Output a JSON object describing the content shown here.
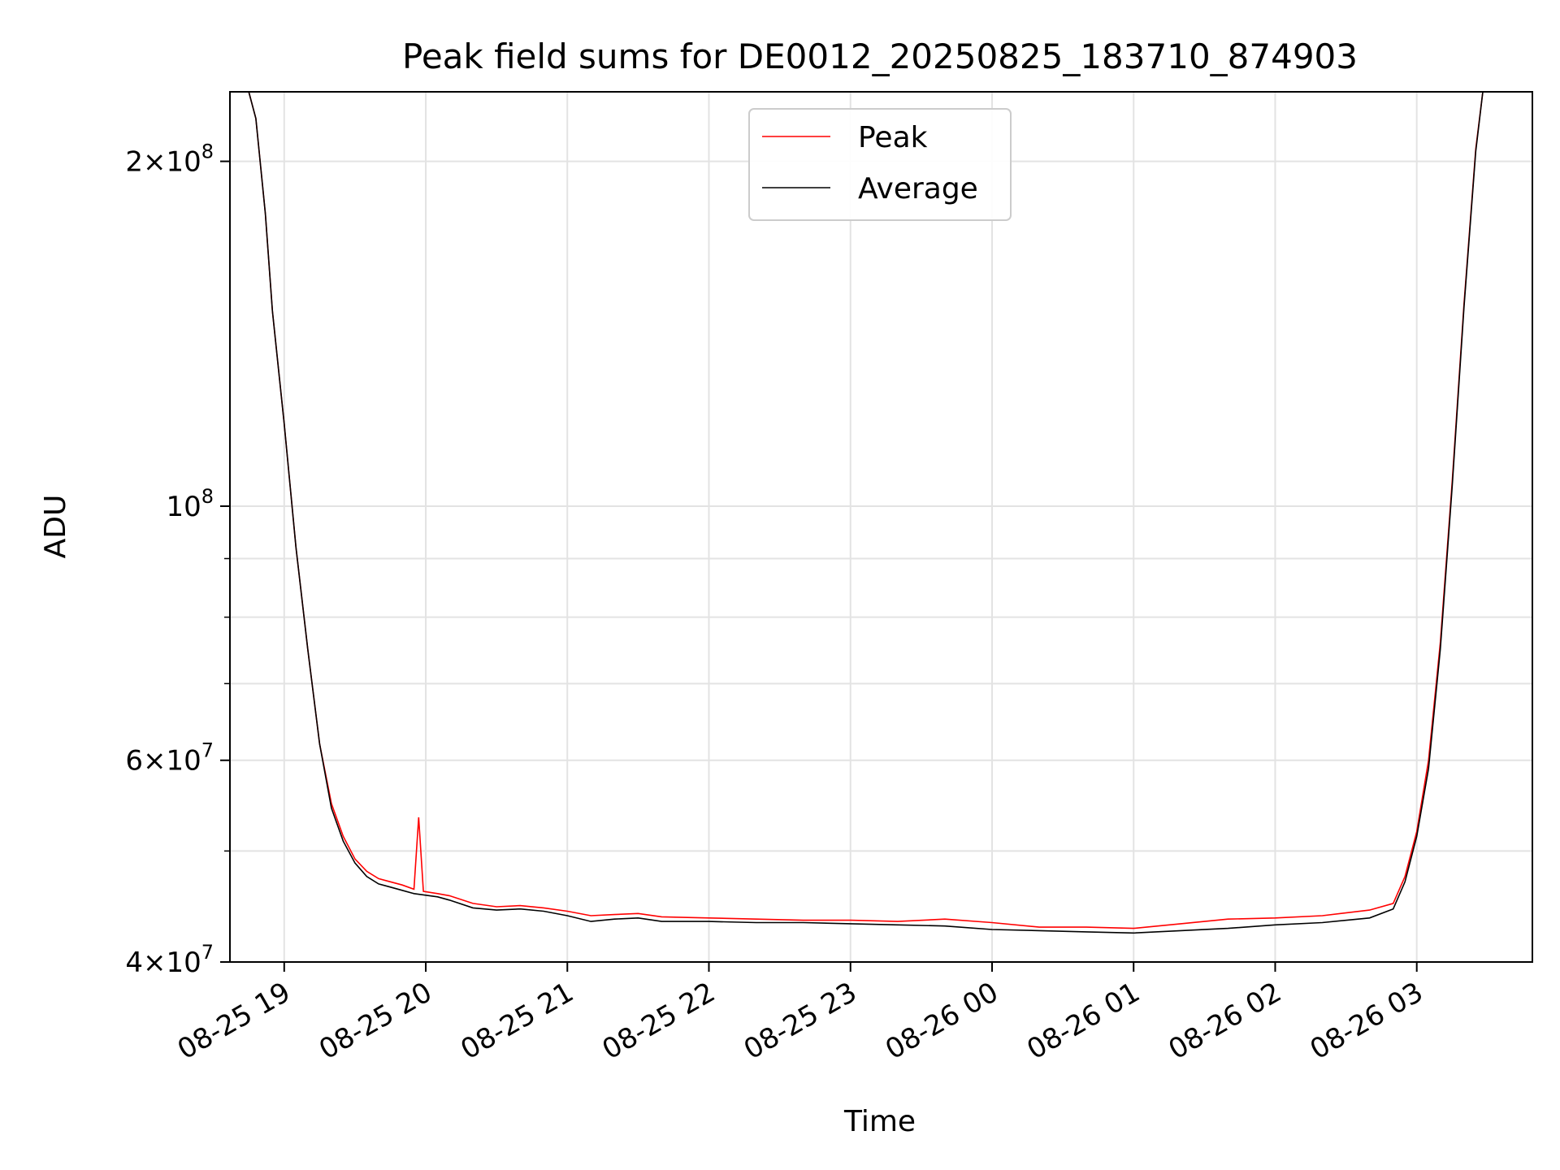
{
  "chart_data": {
    "type": "line",
    "title": "Peak field sums for DE0012_20250825_183710_874903",
    "xlabel": "Time",
    "ylabel": "ADU",
    "yscale": "log",
    "xlim": [
      "2025-08-25 18:37",
      "2025-08-26 03:49"
    ],
    "ylim": [
      40000000,
      230000000
    ],
    "grid": true,
    "legend_position": "upper center",
    "x_ticks": [
      {
        "t": "2025-08-25 19:00",
        "label": "08-25 19"
      },
      {
        "t": "2025-08-25 20:00",
        "label": "08-25 20"
      },
      {
        "t": "2025-08-25 21:00",
        "label": "08-25 21"
      },
      {
        "t": "2025-08-25 22:00",
        "label": "08-25 22"
      },
      {
        "t": "2025-08-25 23:00",
        "label": "08-25 23"
      },
      {
        "t": "2025-08-26 00:00",
        "label": "08-26 00"
      },
      {
        "t": "2025-08-26 01:00",
        "label": "08-26 01"
      },
      {
        "t": "2025-08-26 02:00",
        "label": "08-26 02"
      },
      {
        "t": "2025-08-26 03:00",
        "label": "08-26 03"
      }
    ],
    "y_ticks": [
      {
        "value": 40000000,
        "base": "4",
        "exp": "7"
      },
      {
        "value": 60000000,
        "base": "6",
        "exp": "7"
      },
      {
        "value": 100000000,
        "base": "",
        "exp": "8"
      },
      {
        "value": 200000000,
        "base": "2",
        "exp": "8"
      }
    ],
    "y_minor_ticks": [
      50000000,
      70000000,
      80000000,
      90000000
    ],
    "series": [
      {
        "name": "Peak",
        "color": "#ff0000",
        "points": [
          [
            "2025-08-25 18:45",
            230000000
          ],
          [
            "2025-08-25 18:48",
            218000000
          ],
          [
            "2025-08-25 18:52",
            180000000
          ],
          [
            "2025-08-25 18:55",
            148000000
          ],
          [
            "2025-08-25 19:00",
            118000000
          ],
          [
            "2025-08-25 19:05",
            92000000
          ],
          [
            "2025-08-25 19:10",
            75000000
          ],
          [
            "2025-08-25 19:15",
            62000000
          ],
          [
            "2025-08-25 19:20",
            55000000
          ],
          [
            "2025-08-25 19:25",
            51500000
          ],
          [
            "2025-08-25 19:30",
            49200000
          ],
          [
            "2025-08-25 19:35",
            48000000
          ],
          [
            "2025-08-25 19:40",
            47300000
          ],
          [
            "2025-08-25 19:45",
            47000000
          ],
          [
            "2025-08-25 19:50",
            46700000
          ],
          [
            "2025-08-25 19:55",
            46300000
          ],
          [
            "2025-08-25 19:57",
            53500000
          ],
          [
            "2025-08-25 19:59",
            46100000
          ],
          [
            "2025-08-25 20:05",
            45900000
          ],
          [
            "2025-08-25 20:10",
            45700000
          ],
          [
            "2025-08-25 20:20",
            45000000
          ],
          [
            "2025-08-25 20:30",
            44700000
          ],
          [
            "2025-08-25 20:40",
            44800000
          ],
          [
            "2025-08-25 20:50",
            44600000
          ],
          [
            "2025-08-25 21:00",
            44300000
          ],
          [
            "2025-08-25 21:10",
            43900000
          ],
          [
            "2025-08-25 21:20",
            44000000
          ],
          [
            "2025-08-25 21:30",
            44100000
          ],
          [
            "2025-08-25 21:40",
            43800000
          ],
          [
            "2025-08-25 22:00",
            43700000
          ],
          [
            "2025-08-25 22:20",
            43600000
          ],
          [
            "2025-08-25 22:40",
            43500000
          ],
          [
            "2025-08-25 23:00",
            43500000
          ],
          [
            "2025-08-25 23:20",
            43400000
          ],
          [
            "2025-08-25 23:40",
            43600000
          ],
          [
            "2025-08-26 00:00",
            43300000
          ],
          [
            "2025-08-26 00:20",
            42900000
          ],
          [
            "2025-08-26 00:40",
            42900000
          ],
          [
            "2025-08-26 01:00",
            42800000
          ],
          [
            "2025-08-26 01:20",
            43200000
          ],
          [
            "2025-08-26 01:40",
            43600000
          ],
          [
            "2025-08-26 02:00",
            43700000
          ],
          [
            "2025-08-26 02:20",
            43900000
          ],
          [
            "2025-08-26 02:40",
            44400000
          ],
          [
            "2025-08-26 02:50",
            45000000
          ],
          [
            "2025-08-26 02:55",
            47500000
          ],
          [
            "2025-08-26 03:00",
            52000000
          ],
          [
            "2025-08-26 03:05",
            60000000
          ],
          [
            "2025-08-26 03:10",
            76000000
          ],
          [
            "2025-08-26 03:15",
            105000000
          ],
          [
            "2025-08-26 03:20",
            150000000
          ],
          [
            "2025-08-26 03:25",
            205000000
          ],
          [
            "2025-08-26 03:28",
            230000000
          ]
        ]
      },
      {
        "name": "Average",
        "color": "#000000",
        "points": [
          [
            "2025-08-25 18:45",
            230000000
          ],
          [
            "2025-08-25 18:48",
            218000000
          ],
          [
            "2025-08-25 18:52",
            180000000
          ],
          [
            "2025-08-25 18:55",
            148000000
          ],
          [
            "2025-08-25 19:00",
            118000000
          ],
          [
            "2025-08-25 19:05",
            92000000
          ],
          [
            "2025-08-25 19:10",
            75000000
          ],
          [
            "2025-08-25 19:15",
            62000000
          ],
          [
            "2025-08-25 19:20",
            54500000
          ],
          [
            "2025-08-25 19:25",
            51000000
          ],
          [
            "2025-08-25 19:30",
            48800000
          ],
          [
            "2025-08-25 19:35",
            47500000
          ],
          [
            "2025-08-25 19:40",
            46800000
          ],
          [
            "2025-08-25 19:45",
            46500000
          ],
          [
            "2025-08-25 19:50",
            46200000
          ],
          [
            "2025-08-25 19:55",
            45900000
          ],
          [
            "2025-08-25 20:05",
            45600000
          ],
          [
            "2025-08-25 20:10",
            45300000
          ],
          [
            "2025-08-25 20:20",
            44600000
          ],
          [
            "2025-08-25 20:30",
            44400000
          ],
          [
            "2025-08-25 20:40",
            44500000
          ],
          [
            "2025-08-25 20:50",
            44300000
          ],
          [
            "2025-08-25 21:00",
            43900000
          ],
          [
            "2025-08-25 21:10",
            43400000
          ],
          [
            "2025-08-25 21:20",
            43600000
          ],
          [
            "2025-08-25 21:30",
            43700000
          ],
          [
            "2025-08-25 21:40",
            43400000
          ],
          [
            "2025-08-25 22:00",
            43400000
          ],
          [
            "2025-08-25 22:20",
            43300000
          ],
          [
            "2025-08-25 22:40",
            43300000
          ],
          [
            "2025-08-25 23:00",
            43200000
          ],
          [
            "2025-08-25 23:20",
            43100000
          ],
          [
            "2025-08-25 23:40",
            43000000
          ],
          [
            "2025-08-26 00:00",
            42700000
          ],
          [
            "2025-08-26 00:20",
            42600000
          ],
          [
            "2025-08-26 00:40",
            42500000
          ],
          [
            "2025-08-26 01:00",
            42400000
          ],
          [
            "2025-08-26 01:20",
            42600000
          ],
          [
            "2025-08-26 01:40",
            42800000
          ],
          [
            "2025-08-26 02:00",
            43100000
          ],
          [
            "2025-08-26 02:20",
            43300000
          ],
          [
            "2025-08-26 02:40",
            43700000
          ],
          [
            "2025-08-26 02:50",
            44500000
          ],
          [
            "2025-08-26 02:55",
            47000000
          ],
          [
            "2025-08-26 03:00",
            51500000
          ],
          [
            "2025-08-26 03:05",
            59000000
          ],
          [
            "2025-08-26 03:10",
            75000000
          ],
          [
            "2025-08-26 03:15",
            104000000
          ],
          [
            "2025-08-26 03:20",
            149000000
          ],
          [
            "2025-08-26 03:25",
            204000000
          ],
          [
            "2025-08-26 03:28",
            230000000
          ]
        ]
      }
    ]
  }
}
